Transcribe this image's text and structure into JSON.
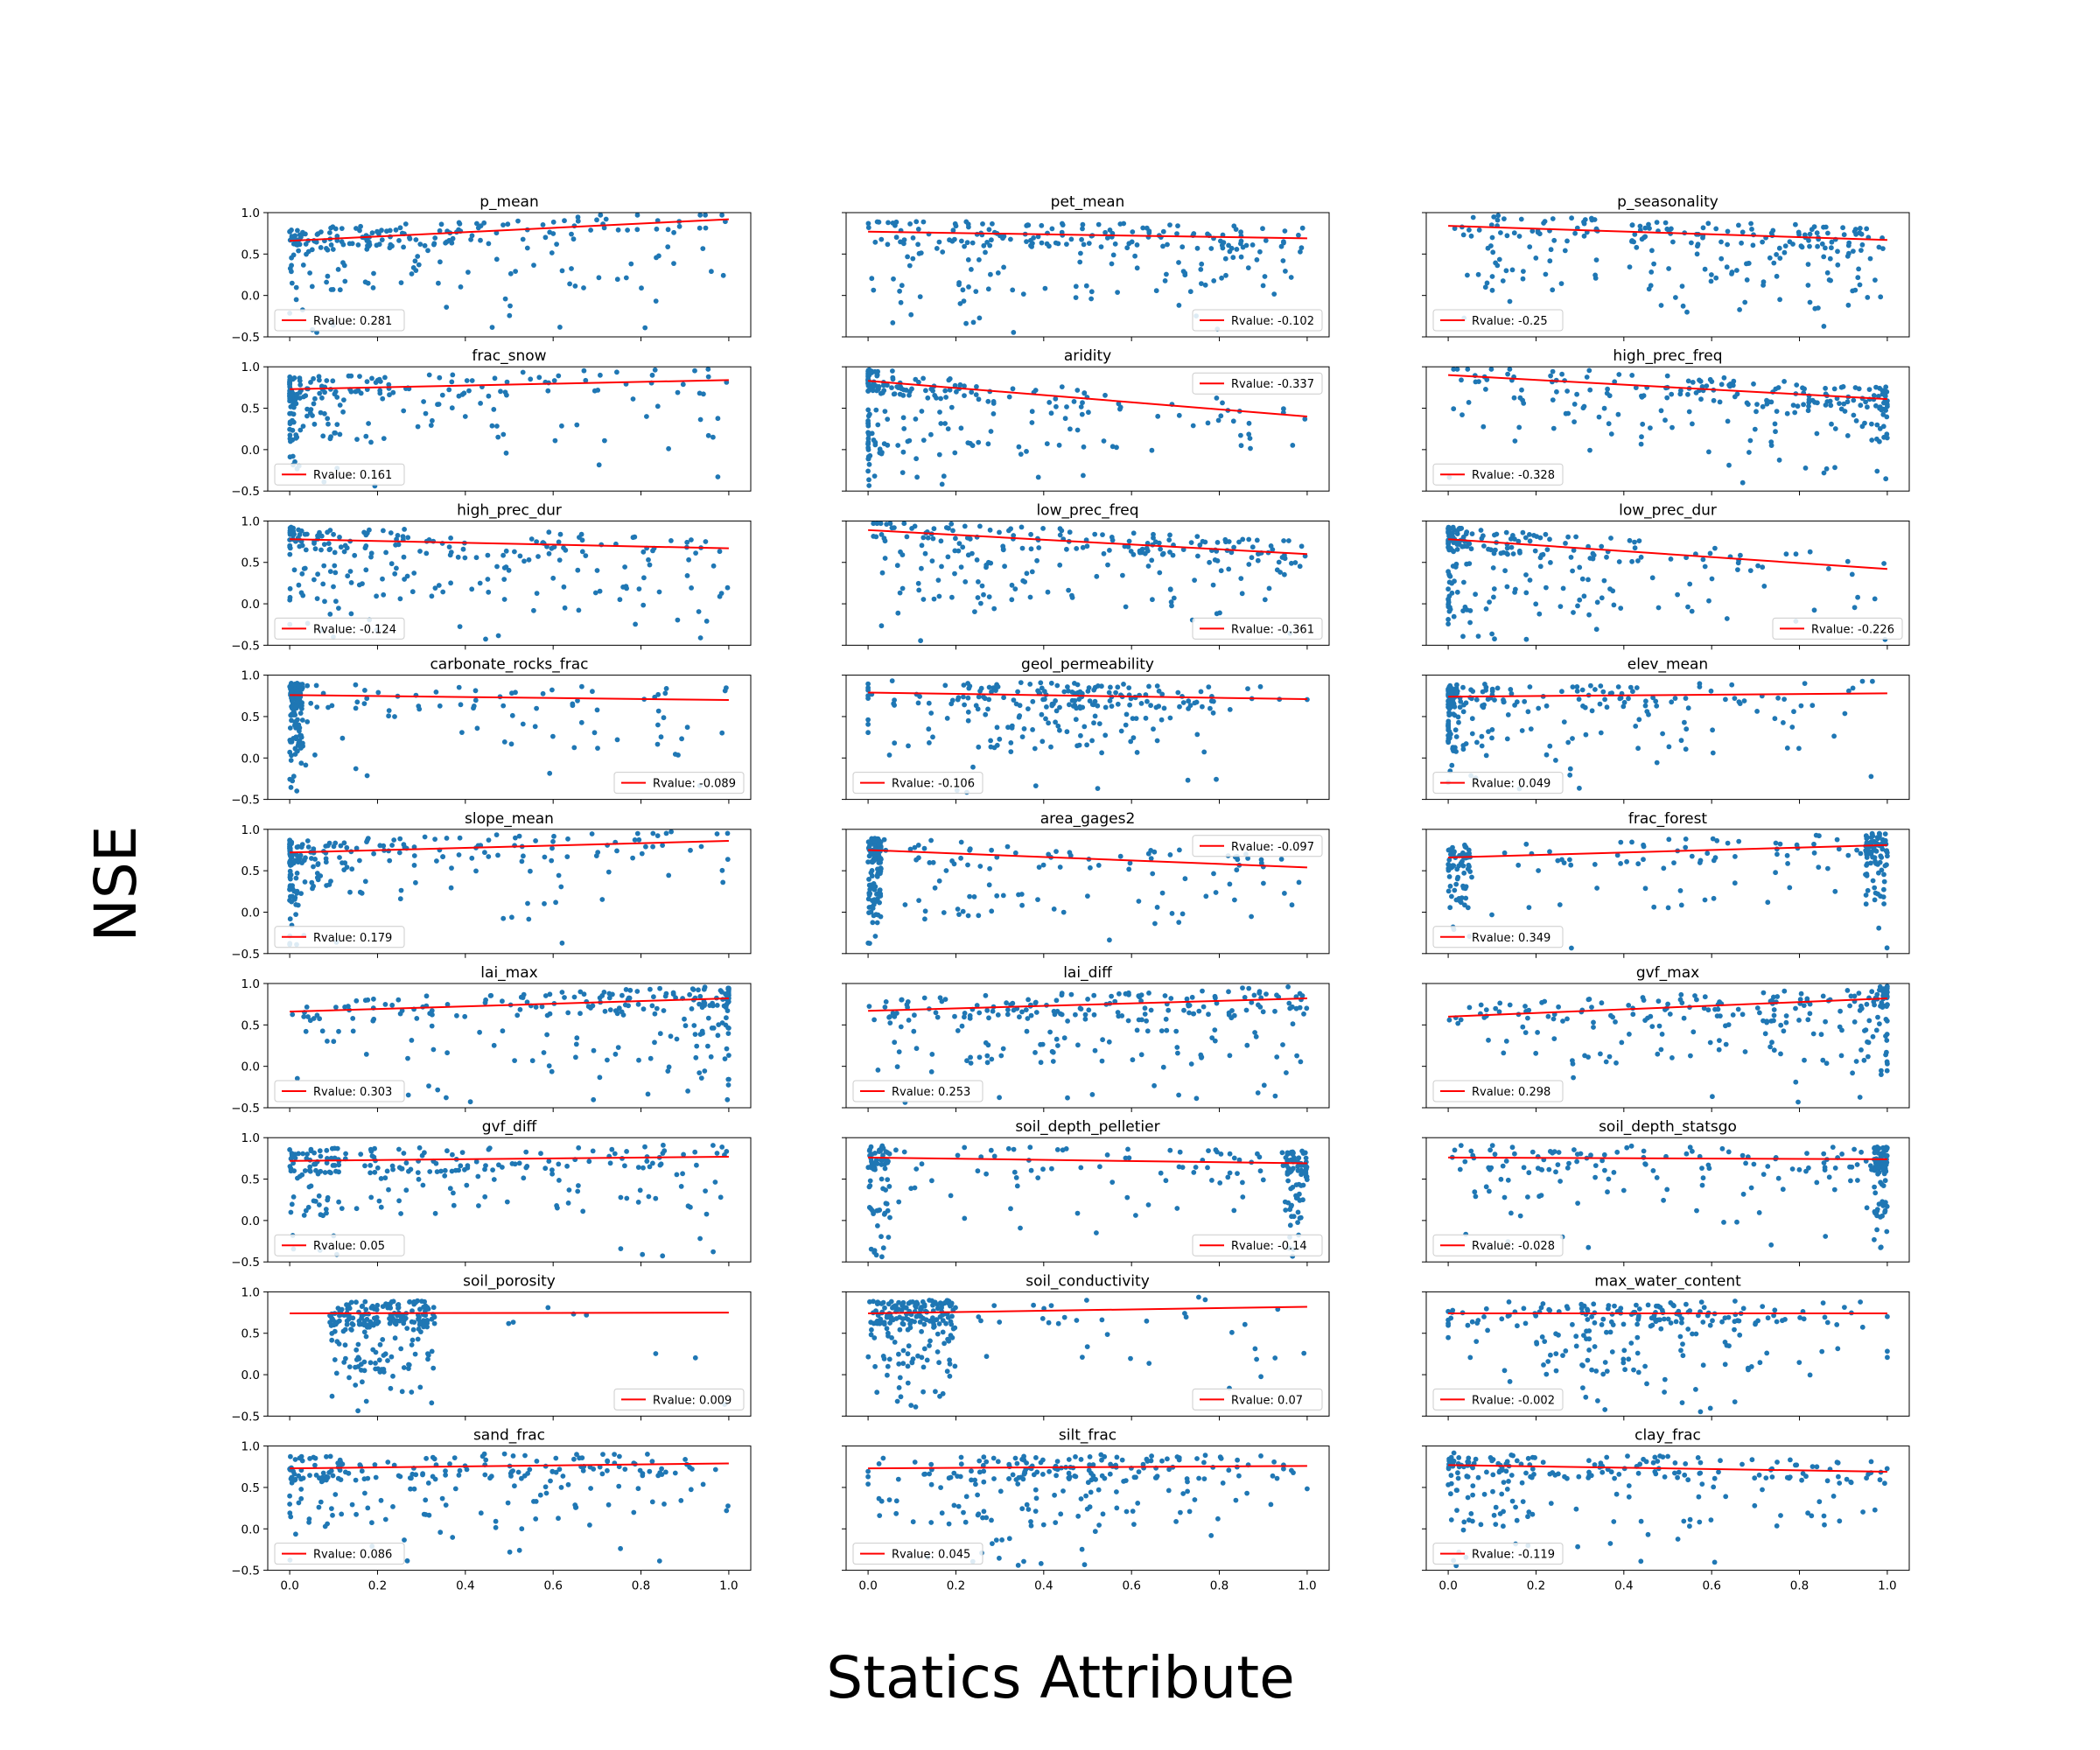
{
  "figure": {
    "ylabel": "NSE",
    "xlabel": "Statics Attribute",
    "colors": {
      "points": "#1f77b4",
      "fit": "#ff0000",
      "axes": "#000000",
      "legend_border": "#cccccc"
    }
  },
  "chart_data": [
    {
      "type": "scatter",
      "title": "p_mean",
      "legend": "Rvalue: 0.281",
      "legend_loc": "lower-left",
      "xlim": [
        -0.05,
        1.05
      ],
      "ylim": [
        -0.5,
        1.0
      ],
      "fit": {
        "x": [
          0,
          1
        ],
        "y": [
          0.66,
          0.92
        ]
      },
      "series": [
        {
          "name": "Rvalue: 0.281",
          "seed": 101,
          "pattern": "skew",
          "slope": 0.26
        }
      ]
    },
    {
      "type": "scatter",
      "title": "pet_mean",
      "legend": "Rvalue: -0.102",
      "legend_loc": "lower-right",
      "xlim": [
        -0.05,
        1.05
      ],
      "ylim": [
        -0.5,
        1.0
      ],
      "fit": {
        "x": [
          0,
          1
        ],
        "y": [
          0.77,
          0.69
        ]
      },
      "series": [
        {
          "name": "Rvalue: -0.102",
          "seed": 102,
          "pattern": "uniform",
          "slope": -0.08
        }
      ]
    },
    {
      "type": "scatter",
      "title": "p_seasonality",
      "legend": "Rvalue: -0.25",
      "legend_loc": "lower-left",
      "xlim": [
        -0.05,
        1.05
      ],
      "ylim": [
        -0.5,
        1.0
      ],
      "fit": {
        "x": [
          0,
          1
        ],
        "y": [
          0.84,
          0.67
        ]
      },
      "series": [
        {
          "name": "Rvalue: -0.25",
          "seed": 103,
          "pattern": "bimodal",
          "slope": -0.17
        }
      ]
    },
    {
      "type": "scatter",
      "title": "frac_snow",
      "legend": "Rvalue: 0.161",
      "legend_loc": "lower-left",
      "xlim": [
        -0.05,
        1.05
      ],
      "ylim": [
        -0.5,
        1.0
      ],
      "fit": {
        "x": [
          0,
          1
        ],
        "y": [
          0.73,
          0.84
        ]
      },
      "series": [
        {
          "name": "Rvalue: 0.161",
          "seed": 104,
          "pattern": "lowskew",
          "slope": 0.11
        }
      ]
    },
    {
      "type": "scatter",
      "title": "aridity",
      "legend": "Rvalue: -0.337",
      "legend_loc": "upper-right",
      "xlim": [
        -0.05,
        1.05
      ],
      "ylim": [
        -0.5,
        1.0
      ],
      "fit": {
        "x": [
          0,
          1
        ],
        "y": [
          0.83,
          0.4
        ]
      },
      "series": [
        {
          "name": "Rvalue: -0.337",
          "seed": 105,
          "pattern": "lowskew",
          "slope": -0.43
        }
      ]
    },
    {
      "type": "scatter",
      "title": "high_prec_freq",
      "legend": "Rvalue: -0.328",
      "legend_loc": "lower-left",
      "xlim": [
        -0.05,
        1.05
      ],
      "ylim": [
        -0.5,
        1.0
      ],
      "fit": {
        "x": [
          0,
          1
        ],
        "y": [
          0.9,
          0.61
        ]
      },
      "series": [
        {
          "name": "Rvalue: -0.328",
          "seed": 106,
          "pattern": "highskew",
          "slope": -0.29
        }
      ]
    },
    {
      "type": "scatter",
      "title": "high_prec_dur",
      "legend": "Rvalue: -0.124",
      "legend_loc": "lower-left",
      "xlim": [
        -0.05,
        1.05
      ],
      "ylim": [
        -0.5,
        1.0
      ],
      "fit": {
        "x": [
          0,
          1
        ],
        "y": [
          0.78,
          0.67
        ]
      },
      "series": [
        {
          "name": "Rvalue: -0.124",
          "seed": 107,
          "pattern": "skew",
          "slope": -0.11
        }
      ]
    },
    {
      "type": "scatter",
      "title": "low_prec_freq",
      "legend": "Rvalue: -0.361",
      "legend_loc": "lower-right",
      "xlim": [
        -0.05,
        1.05
      ],
      "ylim": [
        -0.5,
        1.0
      ],
      "fit": {
        "x": [
          0,
          1
        ],
        "y": [
          0.89,
          0.6
        ]
      },
      "series": [
        {
          "name": "Rvalue: -0.361",
          "seed": 108,
          "pattern": "uniform",
          "slope": -0.29
        }
      ]
    },
    {
      "type": "scatter",
      "title": "low_prec_dur",
      "legend": "Rvalue: -0.226",
      "legend_loc": "lower-right",
      "xlim": [
        -0.05,
        1.05
      ],
      "ylim": [
        -0.5,
        1.0
      ],
      "fit": {
        "x": [
          0,
          1
        ],
        "y": [
          0.78,
          0.42
        ]
      },
      "series": [
        {
          "name": "Rvalue: -0.226",
          "seed": 109,
          "pattern": "lowskew",
          "slope": -0.36
        }
      ]
    },
    {
      "type": "scatter",
      "title": "carbonate_rocks_frac",
      "legend": "Rvalue: -0.089",
      "legend_loc": "lower-right",
      "xlim": [
        -0.05,
        1.05
      ],
      "ylim": [
        -0.5,
        1.0
      ],
      "fit": {
        "x": [
          0,
          1
        ],
        "y": [
          0.76,
          0.7
        ]
      },
      "series": [
        {
          "name": "Rvalue: -0.089",
          "seed": 110,
          "pattern": "zerospike",
          "slope": -0.06
        }
      ]
    },
    {
      "type": "scatter",
      "title": "geol_permeability",
      "legend": "Rvalue: -0.106",
      "legend_loc": "lower-left",
      "xlim": [
        -0.05,
        1.05
      ],
      "ylim": [
        -0.5,
        1.0
      ],
      "fit": {
        "x": [
          0,
          1
        ],
        "y": [
          0.79,
          0.71
        ]
      },
      "series": [
        {
          "name": "Rvalue: -0.106",
          "seed": 111,
          "pattern": "mid",
          "slope": -0.08
        }
      ]
    },
    {
      "type": "scatter",
      "title": "elev_mean",
      "legend": "Rvalue: 0.049",
      "legend_loc": "lower-left",
      "xlim": [
        -0.05,
        1.05
      ],
      "ylim": [
        -0.5,
        1.0
      ],
      "fit": {
        "x": [
          0,
          1
        ],
        "y": [
          0.74,
          0.78
        ]
      },
      "series": [
        {
          "name": "Rvalue: 0.049",
          "seed": 112,
          "pattern": "lowskew",
          "slope": 0.04
        }
      ]
    },
    {
      "type": "scatter",
      "title": "slope_mean",
      "legend": "Rvalue: 0.179",
      "legend_loc": "lower-left",
      "xlim": [
        -0.05,
        1.05
      ],
      "ylim": [
        -0.5,
        1.0
      ],
      "fit": {
        "x": [
          0,
          1
        ],
        "y": [
          0.72,
          0.86
        ]
      },
      "series": [
        {
          "name": "Rvalue: 0.179",
          "seed": 113,
          "pattern": "lowskew",
          "slope": 0.14
        }
      ]
    },
    {
      "type": "scatter",
      "title": "area_gages2",
      "legend": "Rvalue: -0.097",
      "legend_loc": "upper-right",
      "xlim": [
        -0.05,
        1.05
      ],
      "ylim": [
        -0.5,
        1.0
      ],
      "fit": {
        "x": [
          0,
          1
        ],
        "y": [
          0.75,
          0.54
        ]
      },
      "series": [
        {
          "name": "Rvalue: -0.097",
          "seed": 114,
          "pattern": "zerospike",
          "slope": -0.21
        }
      ]
    },
    {
      "type": "scatter",
      "title": "frac_forest",
      "legend": "Rvalue: 0.349",
      "legend_loc": "lower-left",
      "xlim": [
        -0.05,
        1.05
      ],
      "ylim": [
        -0.5,
        1.0
      ],
      "fit": {
        "x": [
          0,
          1
        ],
        "y": [
          0.66,
          0.81
        ]
      },
      "series": [
        {
          "name": "Rvalue: 0.349",
          "seed": 115,
          "pattern": "ends",
          "slope": 0.15
        }
      ]
    },
    {
      "type": "scatter",
      "title": "lai_max",
      "legend": "Rvalue: 0.303",
      "legend_loc": "lower-left",
      "xlim": [
        -0.05,
        1.05
      ],
      "ylim": [
        -0.5,
        1.0
      ],
      "fit": {
        "x": [
          0,
          1
        ],
        "y": [
          0.66,
          0.82
        ]
      },
      "series": [
        {
          "name": "Rvalue: 0.303",
          "seed": 116,
          "pattern": "highskew",
          "slope": 0.16
        }
      ]
    },
    {
      "type": "scatter",
      "title": "lai_diff",
      "legend": "Rvalue: 0.253",
      "legend_loc": "lower-left",
      "xlim": [
        -0.05,
        1.05
      ],
      "ylim": [
        -0.5,
        1.0
      ],
      "fit": {
        "x": [
          0,
          1
        ],
        "y": [
          0.67,
          0.82
        ]
      },
      "series": [
        {
          "name": "Rvalue: 0.253",
          "seed": 117,
          "pattern": "uniform",
          "slope": 0.15
        }
      ]
    },
    {
      "type": "scatter",
      "title": "gvf_max",
      "legend": "Rvalue: 0.298",
      "legend_loc": "lower-left",
      "xlim": [
        -0.05,
        1.05
      ],
      "ylim": [
        -0.5,
        1.0
      ],
      "fit": {
        "x": [
          0,
          1
        ],
        "y": [
          0.6,
          0.82
        ]
      },
      "series": [
        {
          "name": "Rvalue: 0.298",
          "seed": 118,
          "pattern": "highskew",
          "slope": 0.22
        }
      ]
    },
    {
      "type": "scatter",
      "title": "gvf_diff",
      "legend": "Rvalue: 0.05",
      "legend_loc": "lower-left",
      "xlim": [
        -0.05,
        1.05
      ],
      "ylim": [
        -0.5,
        1.0
      ],
      "fit": {
        "x": [
          0,
          1
        ],
        "y": [
          0.72,
          0.77
        ]
      },
      "series": [
        {
          "name": "Rvalue: 0.05",
          "seed": 119,
          "pattern": "skew",
          "slope": 0.05
        }
      ]
    },
    {
      "type": "scatter",
      "title": "soil_depth_pelletier",
      "legend": "Rvalue: -0.14",
      "legend_loc": "lower-right",
      "xlim": [
        -0.05,
        1.05
      ],
      "ylim": [
        -0.5,
        1.0
      ],
      "fit": {
        "x": [
          0,
          1
        ],
        "y": [
          0.76,
          0.69
        ]
      },
      "series": [
        {
          "name": "Rvalue: -0.14",
          "seed": 120,
          "pattern": "ends",
          "slope": -0.07
        }
      ]
    },
    {
      "type": "scatter",
      "title": "soil_depth_statsgo",
      "legend": "Rvalue: -0.028",
      "legend_loc": "lower-left",
      "xlim": [
        -0.05,
        1.05
      ],
      "ylim": [
        -0.5,
        1.0
      ],
      "fit": {
        "x": [
          0,
          1
        ],
        "y": [
          0.76,
          0.74
        ]
      },
      "series": [
        {
          "name": "Rvalue: -0.028",
          "seed": 121,
          "pattern": "onespike",
          "slope": -0.02
        }
      ]
    },
    {
      "type": "scatter",
      "title": "soil_porosity",
      "legend": "Rvalue: 0.009",
      "legend_loc": "lower-right",
      "xlim": [
        -0.05,
        1.05
      ],
      "ylim": [
        -0.5,
        1.0
      ],
      "fit": {
        "x": [
          0,
          1
        ],
        "y": [
          0.74,
          0.75
        ]
      },
      "series": [
        {
          "name": "Rvalue: 0.009",
          "seed": 122,
          "pattern": "cluster",
          "slope": 0.01
        }
      ]
    },
    {
      "type": "scatter",
      "title": "soil_conductivity",
      "legend": "Rvalue: 0.07",
      "legend_loc": "lower-right",
      "xlim": [
        -0.05,
        1.05
      ],
      "ylim": [
        -0.5,
        1.0
      ],
      "fit": {
        "x": [
          0,
          1
        ],
        "y": [
          0.74,
          0.82
        ]
      },
      "series": [
        {
          "name": "Rvalue: 0.07",
          "seed": 123,
          "pattern": "lowcluster",
          "slope": 0.08
        }
      ]
    },
    {
      "type": "scatter",
      "title": "max_water_content",
      "legend": "Rvalue: -0.002",
      "legend_loc": "lower-left",
      "xlim": [
        -0.05,
        1.05
      ],
      "ylim": [
        -0.5,
        1.0
      ],
      "fit": {
        "x": [
          0,
          1
        ],
        "y": [
          0.74,
          0.74
        ]
      },
      "series": [
        {
          "name": "Rvalue: -0.002",
          "seed": 124,
          "pattern": "mid",
          "slope": 0.0
        }
      ]
    },
    {
      "type": "scatter",
      "title": "sand_frac",
      "legend": "Rvalue: 0.086",
      "legend_loc": "lower-left",
      "xlim": [
        -0.05,
        1.05
      ],
      "ylim": [
        -0.5,
        1.0
      ],
      "fit": {
        "x": [
          0,
          1
        ],
        "y": [
          0.73,
          0.79
        ]
      },
      "series": [
        {
          "name": "Rvalue: 0.086",
          "seed": 125,
          "pattern": "skew",
          "slope": 0.06
        }
      ]
    },
    {
      "type": "scatter",
      "title": "silt_frac",
      "legend": "Rvalue: 0.045",
      "legend_loc": "lower-left",
      "xlim": [
        -0.05,
        1.05
      ],
      "ylim": [
        -0.5,
        1.0
      ],
      "fit": {
        "x": [
          0,
          1
        ],
        "y": [
          0.73,
          0.76
        ]
      },
      "series": [
        {
          "name": "Rvalue: 0.045",
          "seed": 126,
          "pattern": "mid",
          "slope": 0.03
        }
      ]
    },
    {
      "type": "scatter",
      "title": "clay_frac",
      "legend": "Rvalue: -0.119",
      "legend_loc": "lower-left",
      "xlim": [
        -0.05,
        1.05
      ],
      "ylim": [
        -0.5,
        1.0
      ],
      "fit": {
        "x": [
          0,
          1
        ],
        "y": [
          0.77,
          0.69
        ]
      },
      "series": [
        {
          "name": "Rvalue: -0.119",
          "seed": 127,
          "pattern": "skew",
          "slope": -0.08
        }
      ]
    }
  ],
  "yticks": [
    "1.0",
    "0.5",
    "0.0",
    "−0.5"
  ],
  "yticks_values": [
    1.0,
    0.5,
    0.0,
    -0.5
  ],
  "xticks": [
    "0.0",
    "0.2",
    "0.4",
    "0.6",
    "0.8",
    "1.0"
  ],
  "xticks_values": [
    0.0,
    0.2,
    0.4,
    0.6,
    0.8,
    1.0
  ]
}
